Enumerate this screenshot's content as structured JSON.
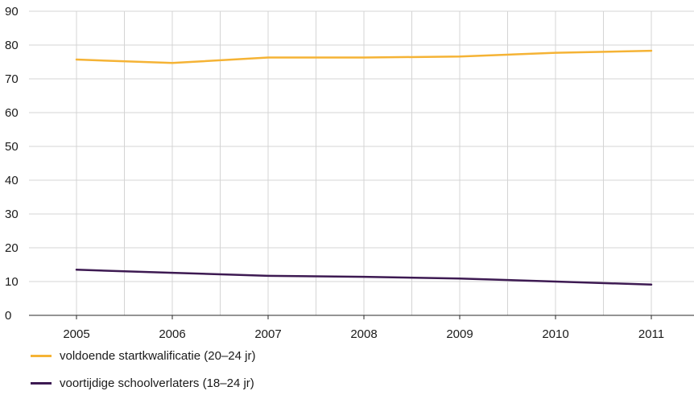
{
  "chart_data": {
    "type": "line",
    "title": "",
    "xlabel": "",
    "ylabel": "",
    "x": [
      "2005",
      "2006",
      "2007",
      "2008",
      "2009",
      "2010",
      "2011"
    ],
    "ylim": [
      0,
      90
    ],
    "yticks": [
      0,
      10,
      20,
      30,
      40,
      50,
      60,
      70,
      80,
      90
    ],
    "grid": true,
    "legend_position": "bottom-left",
    "series": [
      {
        "name": "voldoende startkwalificatie (20–24 jr)",
        "color": "#f5b335",
        "values": [
          75.7,
          74.7,
          76.3,
          76.3,
          76.6,
          77.7,
          78.3
        ]
      },
      {
        "name": "voortijdige schoolverlaters (18–24 jr)",
        "color": "#3d1a52",
        "values": [
          13.5,
          12.6,
          11.7,
          11.4,
          10.9,
          10.0,
          9.1
        ]
      }
    ]
  }
}
